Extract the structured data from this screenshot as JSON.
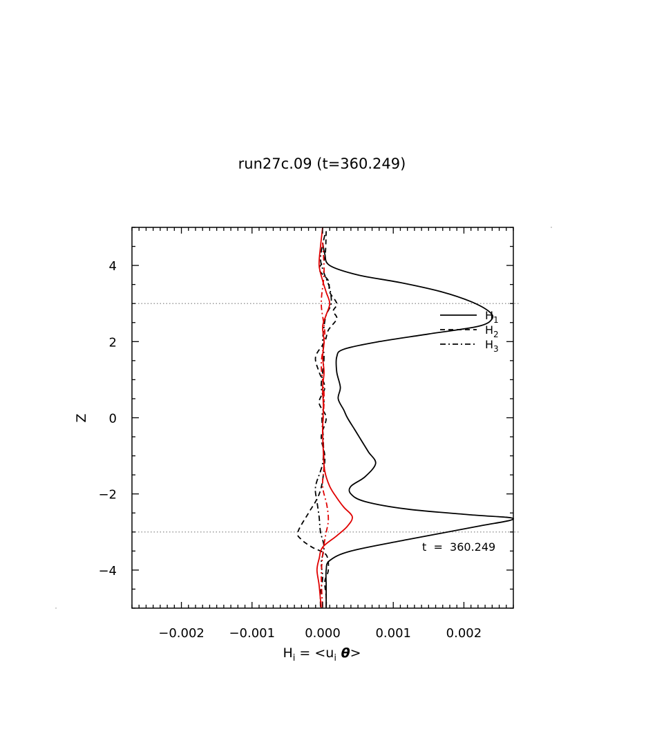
{
  "chart_data": {
    "type": "line",
    "title": "run27c.09  (t=360.249)",
    "xlabel": "H_i = <u_i θ>",
    "xlabel_parts": {
      "H": "H",
      "sub_i": "i",
      "mid": " = <u",
      "sub_i2": "i",
      "theta": " θ",
      "close": ">"
    },
    "ylabel": "Z",
    "xlim": [
      -0.0027,
      0.0027
    ],
    "ylim": [
      -5,
      5
    ],
    "xticks": [
      -0.002,
      -0.001,
      0.0,
      0.001,
      0.002
    ],
    "xtick_labels": [
      "−0.002",
      "−0.001",
      "0.000",
      "0.001",
      "0.002"
    ],
    "yticks": [
      -4,
      -2,
      0,
      2,
      4
    ],
    "ytick_labels": [
      "−4",
      "−2",
      "0",
      "2",
      "4"
    ],
    "grid": false,
    "reference_lines_z": [
      3,
      -3
    ],
    "legend_position": "upper-right",
    "legend": [
      {
        "base": "H",
        "sub": "1",
        "style": "solid"
      },
      {
        "base": "H",
        "sub": "2",
        "style": "dashed"
      },
      {
        "base": "H",
        "sub": "3",
        "style": "dashdot"
      }
    ],
    "annotation": "t  =  360.249",
    "series": [
      {
        "name": "H1",
        "color": "#000000",
        "style": "solid",
        "x": [
          0.0,
          3e-05,
          0.0001,
          0.0005,
          0.0011,
          0.0017,
          0.0021,
          0.00235,
          0.0024,
          0.0022,
          0.0015,
          0.0008,
          0.0003,
          0.0002,
          0.0002,
          0.00025,
          0.00022,
          0.0003,
          0.00035,
          0.00045,
          0.00055,
          0.00065,
          0.00075,
          0.0006,
          0.0004,
          0.0004,
          0.0006,
          0.0012,
          0.0021,
          0.0027,
          0.0022,
          0.0012,
          0.0004,
          0.0001,
          5e-05,
          5e-05,
          5e-05,
          5e-05
        ],
        "y": [
          4.6,
          4.3,
          4.0,
          3.75,
          3.55,
          3.3,
          3.05,
          2.8,
          2.6,
          2.4,
          2.2,
          2.0,
          1.8,
          1.6,
          1.2,
          0.8,
          0.5,
          0.2,
          0.0,
          -0.3,
          -0.6,
          -0.9,
          -1.2,
          -1.55,
          -1.8,
          -2.0,
          -2.2,
          -2.4,
          -2.55,
          -2.65,
          -2.85,
          -3.2,
          -3.5,
          -3.75,
          -4.0,
          -4.4,
          -4.7,
          -5.0
        ]
      },
      {
        "name": "H2",
        "color": "#000000",
        "style": "dashed",
        "x": [
          5e-05,
          3e-05,
          -5e-05,
          8e-05,
          0.0001,
          0.0002,
          0.00015,
          0.0002,
          8e-05,
          3e-05,
          -0.0001,
          -5e-05,
          3e-05,
          -5e-05,
          5e-05,
          -2e-05,
          3e-05,
          1e-05,
          -3e-05,
          -0.0001,
          -0.0002,
          -0.00035,
          -0.0003,
          -0.00015,
          5e-05,
          8e-05,
          3e-05,
          5e-05,
          5e-05
        ],
        "y": [
          4.9,
          4.2,
          3.9,
          3.6,
          3.3,
          3.0,
          2.8,
          2.6,
          2.3,
          2.0,
          1.6,
          1.2,
          0.8,
          0.4,
          0.0,
          -0.5,
          -1.0,
          -1.5,
          -1.9,
          -2.2,
          -2.5,
          -3.0,
          -3.2,
          -3.4,
          -3.6,
          -4.0,
          -4.3,
          -4.7,
          -5.0
        ]
      },
      {
        "name": "H3",
        "color": "#000000",
        "style": "dashdot",
        "x": [
          3e-05,
          -3e-05,
          2e-05,
          0.0001,
          0.00012,
          5e-05,
          2e-05,
          0.0,
          2e-05,
          0.0,
          -2e-05,
          2e-05,
          -1e-05,
          1e-05,
          0.0,
          -0.0001,
          -8e-05,
          -5e-05,
          -3e-05,
          2e-05,
          -2e-05,
          0.0,
          -3e-05,
          -3e-05
        ],
        "y": [
          4.8,
          4.2,
          3.8,
          3.4,
          3.0,
          2.7,
          2.4,
          2.0,
          1.6,
          1.2,
          0.8,
          0.4,
          0.0,
          -0.6,
          -1.2,
          -1.8,
          -2.2,
          -2.6,
          -3.0,
          -3.4,
          -3.8,
          -4.2,
          -4.6,
          -5.0
        ]
      },
      {
        "name": "H1 (red)",
        "color": "#e00000",
        "style": "solid",
        "x": [
          0.0,
          -3e-05,
          -5e-05,
          0.0,
          5e-05,
          0.0001,
          5e-05,
          0.0,
          2e-05,
          0.0,
          2e-05,
          0.0,
          1e-05,
          0.0,
          1e-05,
          3e-05,
          0.0001,
          0.0002,
          0.0003,
          0.00042,
          0.00035,
          0.0002,
          0.0,
          -5e-05,
          -8e-05,
          -5e-05,
          -2e-05
        ],
        "y": [
          5.0,
          4.5,
          4.0,
          3.6,
          3.3,
          3.0,
          2.7,
          2.4,
          2.0,
          1.6,
          1.2,
          0.8,
          0.3,
          -0.3,
          -0.9,
          -1.4,
          -1.8,
          -2.1,
          -2.35,
          -2.6,
          -2.85,
          -3.1,
          -3.4,
          -3.7,
          -4.0,
          -4.4,
          -5.0
        ]
      },
      {
        "name": "H3 (red)",
        "color": "#e00000",
        "style": "dashdot",
        "x": [
          0.0,
          2e-05,
          -2e-05,
          3e-05,
          -2e-05,
          2e-05,
          0.0,
          2e-05,
          0.0,
          6e-05,
          8e-05,
          4e-05,
          0.0,
          -2e-05,
          0.0
        ],
        "y": [
          4.6,
          3.8,
          3.0,
          2.2,
          1.4,
          0.6,
          -0.4,
          -1.2,
          -1.8,
          -2.3,
          -2.7,
          -3.1,
          -3.6,
          -4.2,
          -5.0
        ]
      }
    ]
  }
}
